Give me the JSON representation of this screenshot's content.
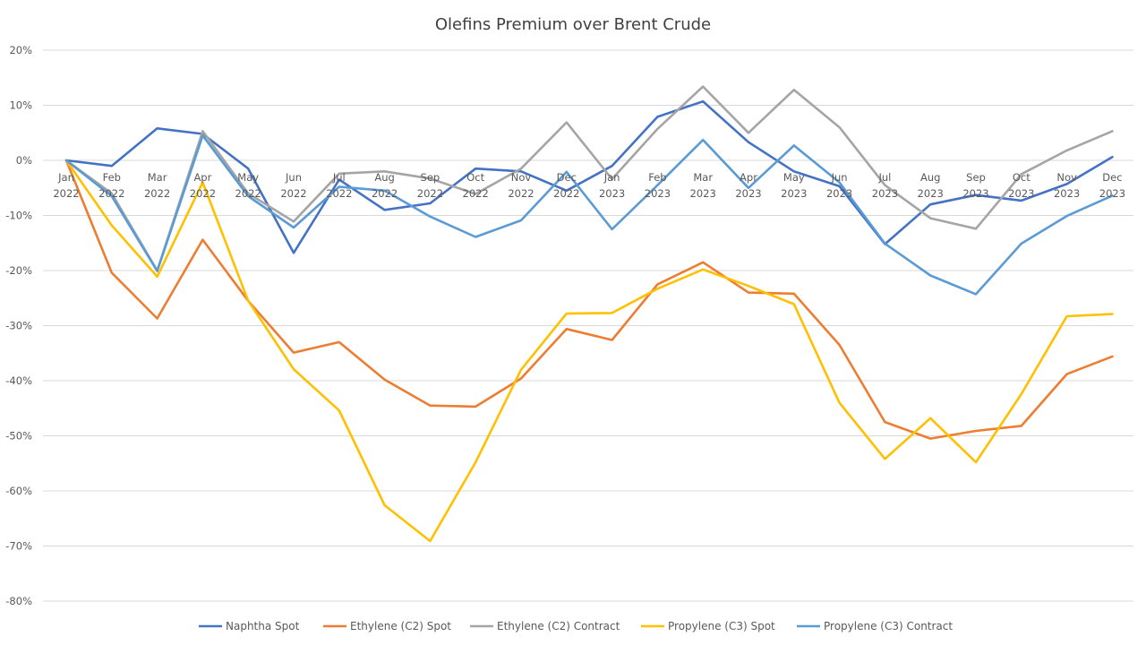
{
  "chart_data": {
    "type": "line",
    "title": "Olefins Premium over Brent Crude",
    "xlabel": "",
    "ylabel": "",
    "ylim": [
      -80,
      20
    ],
    "yticks": [
      "20%",
      "10%",
      "0%",
      "-10%",
      "-20%",
      "-30%",
      "-40%",
      "-50%",
      "-60%",
      "-70%",
      "-80%"
    ],
    "categories": [
      [
        "Jan",
        "2022"
      ],
      [
        "Feb",
        "2022"
      ],
      [
        "Mar",
        "2022"
      ],
      [
        "Apr",
        "2022"
      ],
      [
        "May",
        "2022"
      ],
      [
        "Jun",
        "2022"
      ],
      [
        "Jul",
        "2022"
      ],
      [
        "Aug",
        "2022"
      ],
      [
        "Sep",
        "2022"
      ],
      [
        "Oct",
        "2022"
      ],
      [
        "Nov",
        "2022"
      ],
      [
        "Dec",
        "2022"
      ],
      [
        "Jan",
        "2023"
      ],
      [
        "Feb",
        "2023"
      ],
      [
        "Mar",
        "2023"
      ],
      [
        "Apr",
        "2023"
      ],
      [
        "May",
        "2023"
      ],
      [
        "Jun",
        "2023"
      ],
      [
        "Jul",
        "2023"
      ],
      [
        "Aug",
        "2023"
      ],
      [
        "Sep",
        "2023"
      ],
      [
        "Oct",
        "2023"
      ],
      [
        "Nov",
        "2023"
      ],
      [
        "Dec",
        "2023"
      ]
    ],
    "grid": true,
    "legend_position": "bottom",
    "series": [
      {
        "name": "Naphtha Spot",
        "color": "#4472c4",
        "values": [
          0,
          -1,
          5.8,
          4.8,
          -1.5,
          -16.8,
          -3.5,
          -9,
          -7.8,
          -1.5,
          -2,
          -5.5,
          -1,
          7.9,
          10.7,
          3.3,
          -2,
          -4.7,
          -15.2,
          -8,
          -6.3,
          -7.3,
          -4.3,
          0.6
        ]
      },
      {
        "name": "Ethylene (C2) Spot",
        "color": "#ed7d31",
        "values": [
          0,
          -20.4,
          -28.7,
          -14.4,
          -25.5,
          -34.9,
          -33,
          -39.8,
          -44.5,
          -44.7,
          -39.6,
          -30.6,
          -32.6,
          -22.5,
          -18.5,
          -24,
          -24.2,
          -33.5,
          -47.5,
          -50.5,
          -49.1,
          -48.2,
          -38.8,
          -35.6
        ]
      },
      {
        "name": "Ethylene (C2) Contract",
        "color": "#a5a5a5",
        "values": [
          0,
          -6,
          -20,
          5.3,
          -6,
          -11.1,
          -2.4,
          -2,
          -3.3,
          -6.1,
          -1.5,
          6.9,
          -3.4,
          5.7,
          13.4,
          5,
          12.8,
          6,
          -4.5,
          -10.5,
          -12.4,
          -2.5,
          1.8,
          5.3
        ]
      },
      {
        "name": "Propylene (C3) Spot",
        "color": "#ffc000",
        "values": [
          0,
          -11.8,
          -21.1,
          -4,
          -25.5,
          -37.9,
          -45.4,
          -62.6,
          -69.1,
          -54.8,
          -38,
          -27.8,
          -27.7,
          -23.3,
          -19.8,
          -22.8,
          -26.1,
          -44,
          -54.2,
          -46.8,
          -54.8,
          -42.4,
          -28.3,
          -27.9
        ]
      },
      {
        "name": "Propylene (C3) Contract",
        "color": "#5b9bd5",
        "values": [
          0,
          -6.5,
          -20.1,
          4.5,
          -6.5,
          -12.2,
          -4.8,
          -5.5,
          -10.2,
          -13.9,
          -10.9,
          -2.1,
          -12.5,
          -4.5,
          3.7,
          -5,
          2.7,
          -4,
          -15.1,
          -20.9,
          -24.3,
          -15.1,
          -10.1,
          -6.4
        ]
      }
    ]
  }
}
